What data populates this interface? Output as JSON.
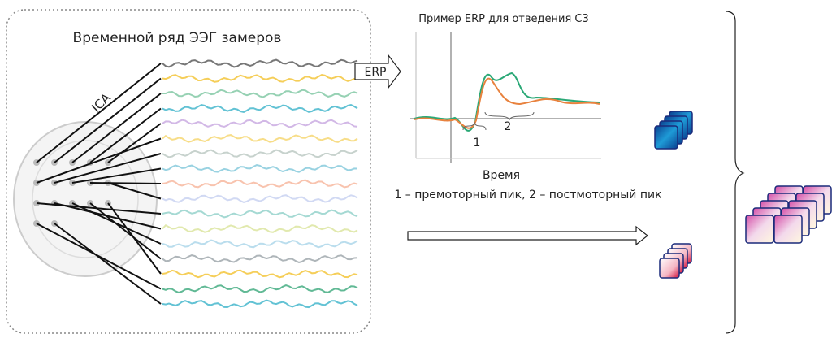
{
  "eeg_panel": {
    "title": "Временной ряд ЭЭГ замеров",
    "ica_label": "ICA"
  },
  "arrow_label": "ERP",
  "erp_chart": {
    "title": "Пример ERP для отведения C3",
    "peak_1": "1",
    "peak_2": "2",
    "x_label": "Время",
    "legend": "1 – премоторный пик, 2 – постмоторный пик"
  }
}
